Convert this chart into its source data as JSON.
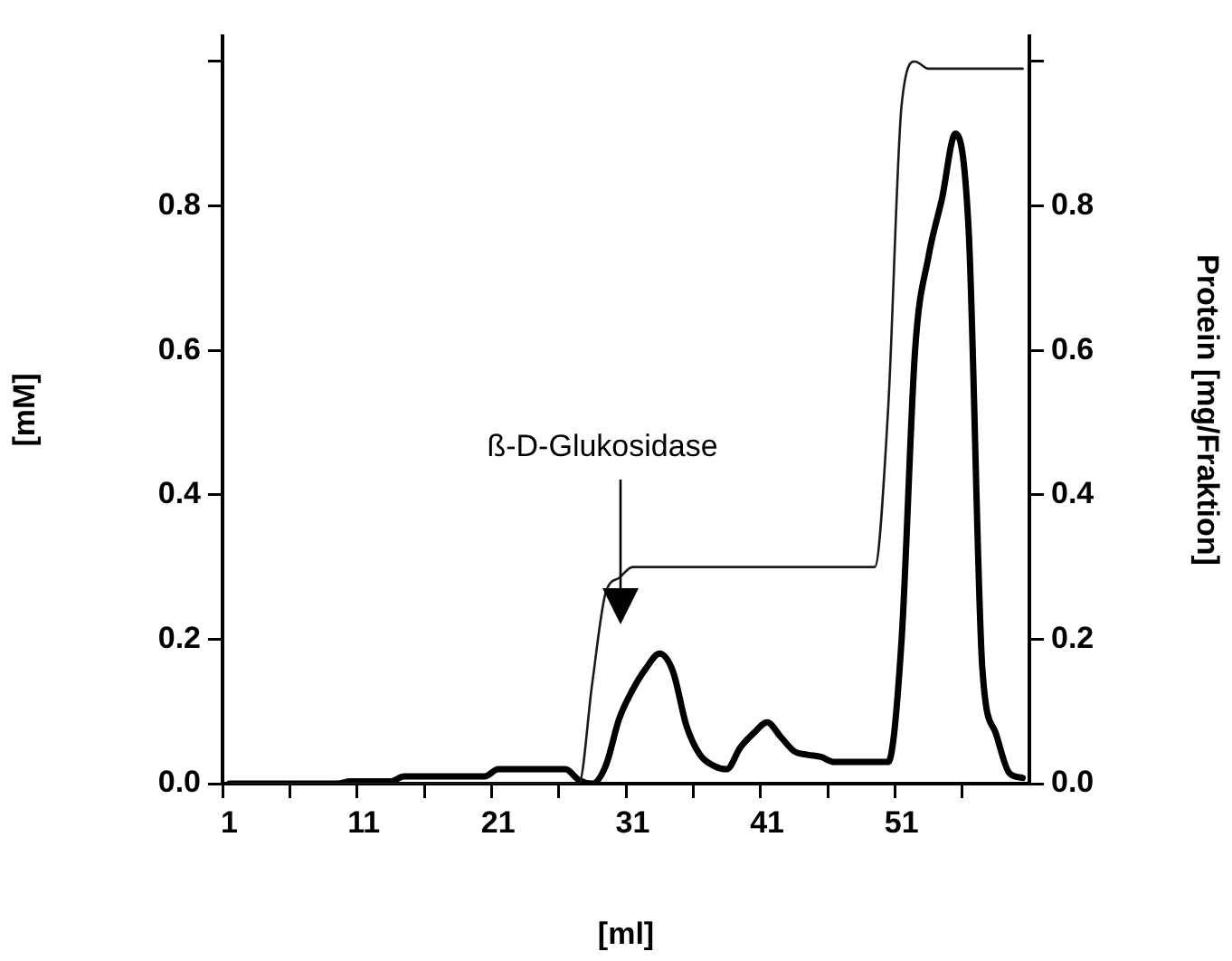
{
  "chart_data": {
    "type": "line",
    "xlabel": "[ml]",
    "ylabel": "[mM]",
    "y2label": "Protein [mg/Fraktion]",
    "marker": "none",
    "grid": false,
    "legend": false,
    "categories": [
      "1",
      null,
      null,
      null,
      null,
      null,
      null,
      null,
      null,
      null,
      "11",
      null,
      null,
      null,
      null,
      null,
      null,
      null,
      null,
      null,
      "21",
      null,
      null,
      null,
      null,
      null,
      null,
      null,
      null,
      null,
      "31",
      null,
      null,
      null,
      null,
      null,
      null,
      null,
      null,
      null,
      "41",
      null,
      null,
      null,
      null,
      null,
      null,
      null,
      null,
      null,
      "51",
      null,
      null,
      null,
      null,
      null,
      null,
      null,
      null,
      null
    ],
    "ylim": [
      0,
      1.035
    ],
    "yticks": [
      {
        "value": 0,
        "label": "0.0"
      },
      {
        "value": 0.2,
        "label": "0.2"
      },
      {
        "value": 0.4,
        "label": "0.4"
      },
      {
        "value": 0.6,
        "label": "0.6"
      },
      {
        "value": 0.8,
        "label": "0.8"
      },
      {
        "value": 1,
        "label": null
      }
    ],
    "y2lim": [
      0,
      1.035
    ],
    "y2ticks": [
      {
        "value": 0,
        "label": "0.0"
      },
      {
        "value": 0.2,
        "label": "0.2"
      },
      {
        "value": 0.4,
        "label": "0.4"
      },
      {
        "value": 0.6,
        "label": "0.6"
      },
      {
        "value": 0.8,
        "label": "0.8"
      },
      {
        "value": 1,
        "label": null
      }
    ],
    "annotations": [
      "ß-D-Glukosidase"
    ],
    "series": [
      {
        "color": "#1a1a1a",
        "values": [
          0,
          0,
          0,
          0,
          0,
          0,
          0,
          0,
          0,
          0,
          0,
          0,
          0,
          0,
          0,
          0,
          0,
          0,
          0,
          0,
          0,
          0,
          0,
          0,
          0,
          0,
          0,
          0.14,
          0.265,
          0.285,
          0.3,
          0.3,
          0.3,
          0.3,
          0.3,
          0.3,
          0.3,
          0.3,
          0.3,
          0.3,
          0.3,
          0.3,
          0.3,
          0.3,
          0.3,
          0.3,
          0.3,
          0.3,
          0.3,
          0.52,
          0.94,
          1,
          0.99,
          0.99,
          0.99,
          0.99,
          0.99,
          0.99,
          0.99,
          0.99
        ]
      },
      {
        "color": "#000000",
        "axis": "y2",
        "values": [
          0,
          0,
          0,
          0,
          0,
          0,
          0,
          0,
          0,
          0.003,
          0.003,
          0.003,
          0.003,
          0.01,
          0.01,
          0.01,
          0.01,
          0.01,
          0.01,
          0.01,
          0.02,
          0.02,
          0.02,
          0.02,
          0.02,
          0.02,
          0.005,
          0,
          0.025,
          0.09,
          0.13,
          0.16,
          0.18,
          0.155,
          0.08,
          0.04,
          0.025,
          0.02,
          0.05,
          0.07,
          0.085,
          0.065,
          0.045,
          0.04,
          0.037,
          0.03,
          0.03,
          0.03,
          0.03,
          0.03,
          0.2,
          0.6,
          0.73,
          0.81,
          0.9,
          0.76,
          0.16,
          0.07,
          0.015,
          0.008
        ]
      }
    ]
  }
}
